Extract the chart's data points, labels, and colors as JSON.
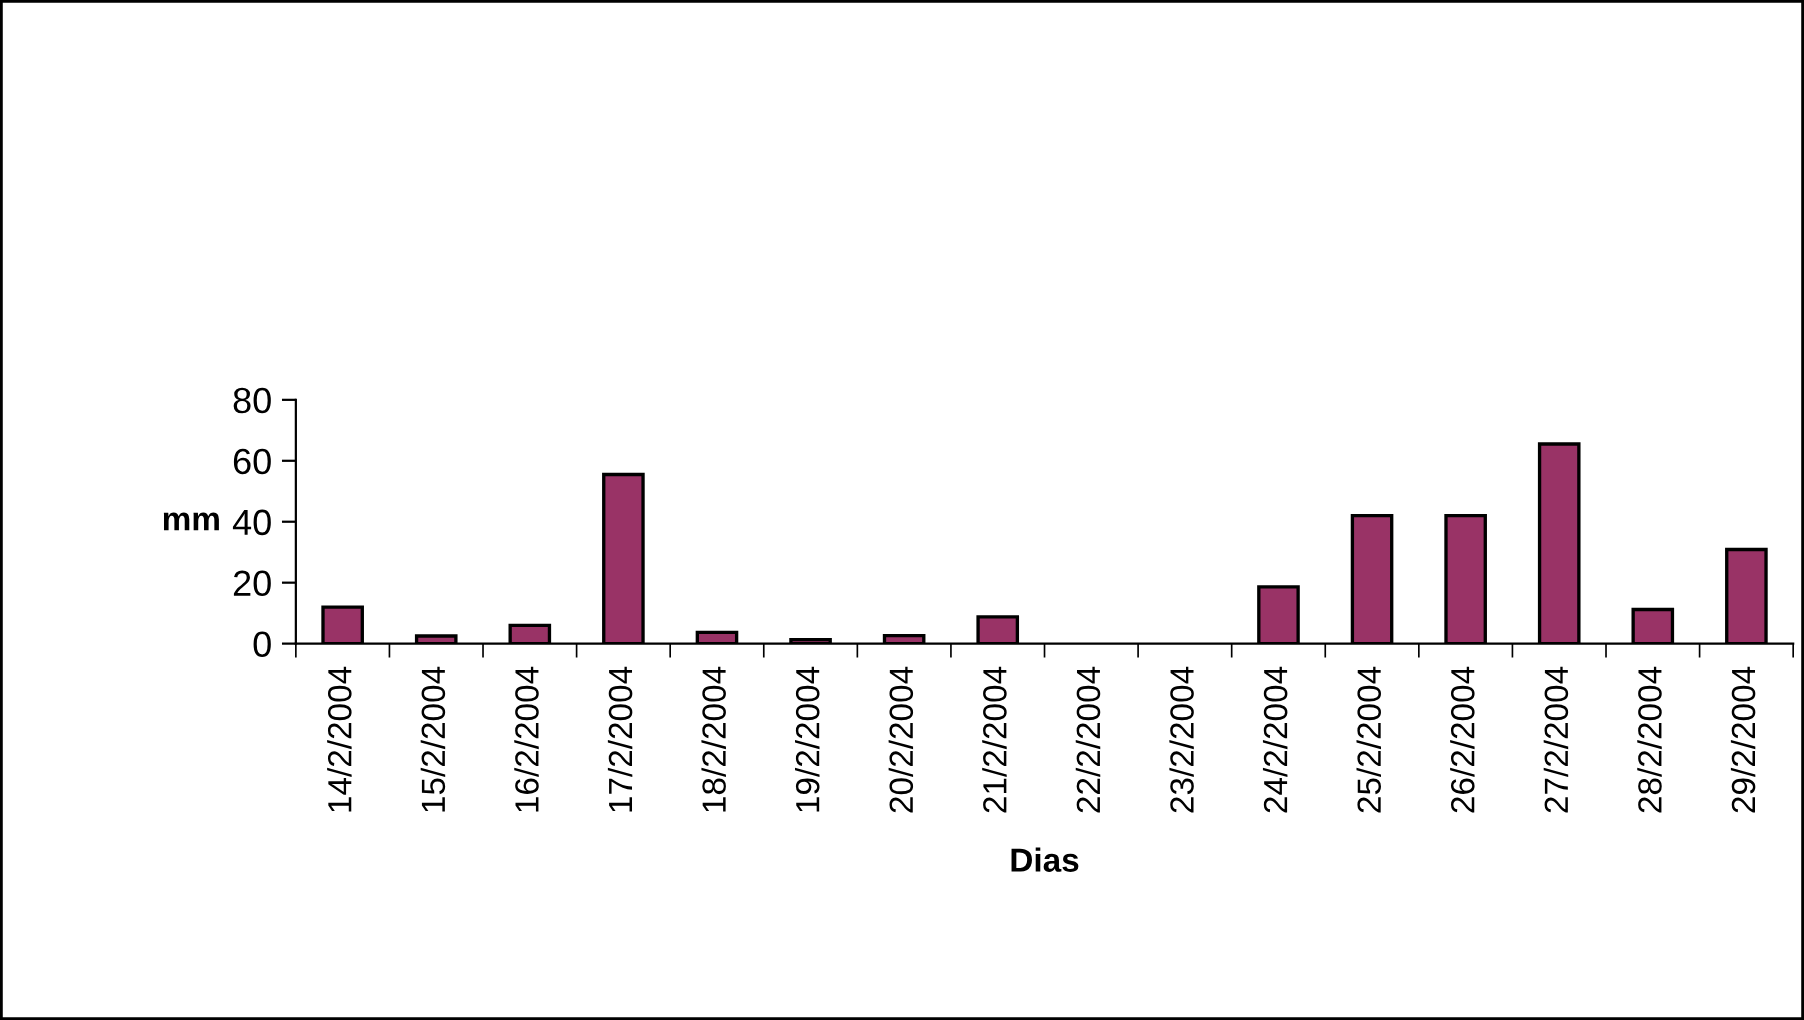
{
  "chart_data": {
    "type": "bar",
    "xlabel": "Dias",
    "ylabel": "mm",
    "categories": [
      "14/2/2004",
      "15/2/2004",
      "16/2/2004",
      "17/2/2004",
      "18/2/2004",
      "19/2/2004",
      "20/2/2004",
      "21/2/2004",
      "22/2/2004",
      "23/2/2004",
      "24/2/2004",
      "25/2/2004",
      "26/2/2004",
      "27/2/2004",
      "28/2/2004",
      "29/2/2004"
    ],
    "values": [
      12,
      2.5,
      6,
      55.5,
      3.7,
      1.3,
      2.6,
      8.8,
      0,
      0,
      18.6,
      42,
      42,
      65.5,
      11.2,
      30.9
    ],
    "color": "#993366",
    "ylim": [
      0,
      80
    ],
    "yticks": [
      0,
      20,
      40,
      60,
      80
    ],
    "grid": false,
    "legend": false
  }
}
